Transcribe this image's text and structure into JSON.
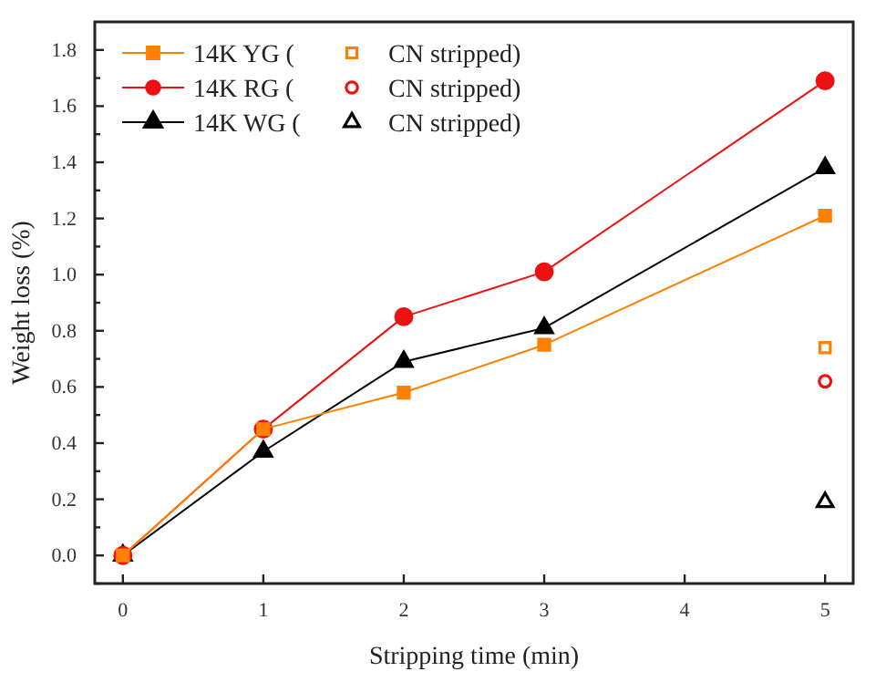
{
  "chart_data": {
    "type": "line",
    "xlabel": "Stripping time (min)",
    "ylabel": "Weight loss (%)",
    "xlim": [
      -0.2,
      5.2
    ],
    "xticks": [
      0,
      1,
      2,
      3,
      4,
      5
    ],
    "ylim": [
      -0.1,
      1.9
    ],
    "yticks": [
      {
        "value": -0.1,
        "label": null
      },
      "0.0",
      {
        "value": 0.1,
        "label": null
      },
      {
        "value": 0.2,
        "label": "0.2"
      },
      {
        "value": 0.3,
        "label": null
      },
      {
        "value": 0.4,
        "label": "0.4"
      },
      {
        "value": 0.5,
        "label": null
      },
      {
        "value": 0.6,
        "label": "0.6"
      },
      {
        "value": 0.7,
        "label": null
      },
      {
        "value": 0.8,
        "label": "0.8"
      },
      {
        "value": 0.9,
        "label": null
      },
      {
        "value": 1.0,
        "label": "1.0"
      },
      {
        "value": 1.1,
        "label": null
      },
      {
        "value": 1.2,
        "label": "1.2"
      },
      {
        "value": 1.3,
        "label": null
      },
      {
        "value": 1.4,
        "label": "1.4"
      },
      {
        "value": 1.5,
        "label": null
      },
      {
        "value": 1.6,
        "label": "1.6"
      },
      {
        "value": 1.7,
        "label": null
      },
      {
        "value": 1.8,
        "label": "1.8"
      }
    ],
    "legend": "top left",
    "grid": false,
    "series": [
      {
        "name": "14K YG (",
        "color": "#ff8000",
        "marker": "square",
        "x": [
          0,
          1,
          2,
          3,
          5
        ],
        "values": [
          0,
          0.45,
          0.58,
          0.75,
          1.21
        ]
      },
      {
        "name": "CN stripped)",
        "type": "scatter",
        "color": "#ff8000",
        "marker": "square",
        "x": [
          5
        ],
        "values": [
          0.74
        ]
      },
      {
        "name": "14K RG (",
        "color": "#ee1111",
        "marker": "circle",
        "x": [
          0,
          1,
          2,
          3,
          5
        ],
        "values": [
          0,
          0.45,
          0.85,
          1.01,
          1.69
        ]
      },
      {
        "name": "CN stripped)",
        "type": "scatter",
        "color": "#ee1111",
        "marker": "circle",
        "x": [
          5
        ],
        "values": [
          0.62
        ]
      },
      {
        "name": "14K WG (",
        "color": "#000000",
        "marker": "triangle",
        "x": [
          0,
          1,
          2,
          3,
          5
        ],
        "values": [
          0,
          0.37,
          0.69,
          0.81,
          1.38
        ]
      },
      {
        "name": "CN stripped)",
        "type": "scatter",
        "color": "#000000",
        "marker": "triangle",
        "x": [
          5
        ],
        "values": [
          0.19
        ]
      }
    ]
  }
}
